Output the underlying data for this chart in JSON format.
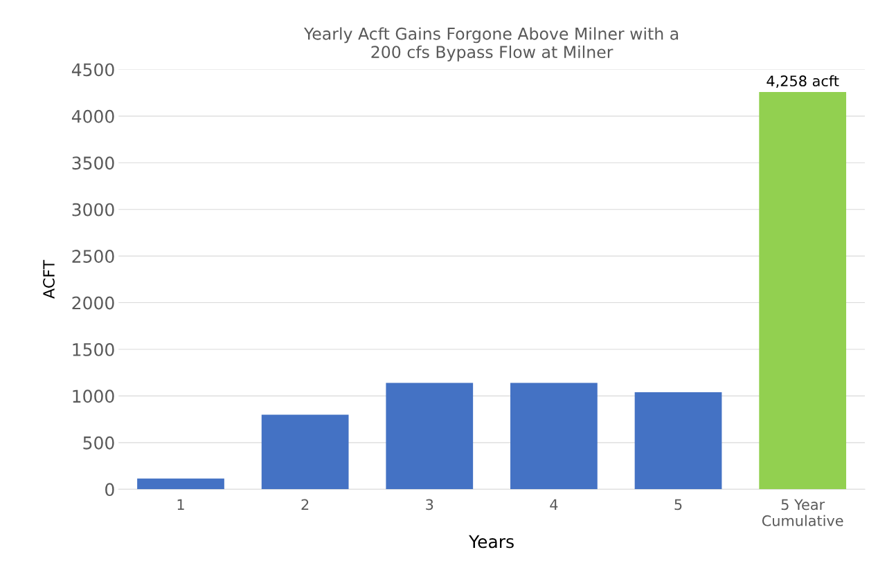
{
  "chart_data": {
    "type": "bar",
    "title": "Yearly Acft Gains Forgone Above Milner with a\n200 cfs Bypass Flow at Milner",
    "xlabel": "Years",
    "ylabel": "ACFT",
    "categories": [
      "1",
      "2",
      "3",
      "4",
      "5",
      "5 Year\nCumulative"
    ],
    "values": [
      115,
      800,
      1140,
      1140,
      1040,
      4258
    ],
    "colors": [
      "#4472c4",
      "#4472c4",
      "#4472c4",
      "#4472c4",
      "#4472c4",
      "#92d050"
    ],
    "value_labels": [
      null,
      null,
      null,
      null,
      null,
      "4,258 acft"
    ],
    "ylim": [
      0,
      4500
    ],
    "yticks": [
      0,
      500,
      1000,
      1500,
      2000,
      2500,
      3000,
      3500,
      4000,
      4500
    ],
    "grid": "y"
  }
}
